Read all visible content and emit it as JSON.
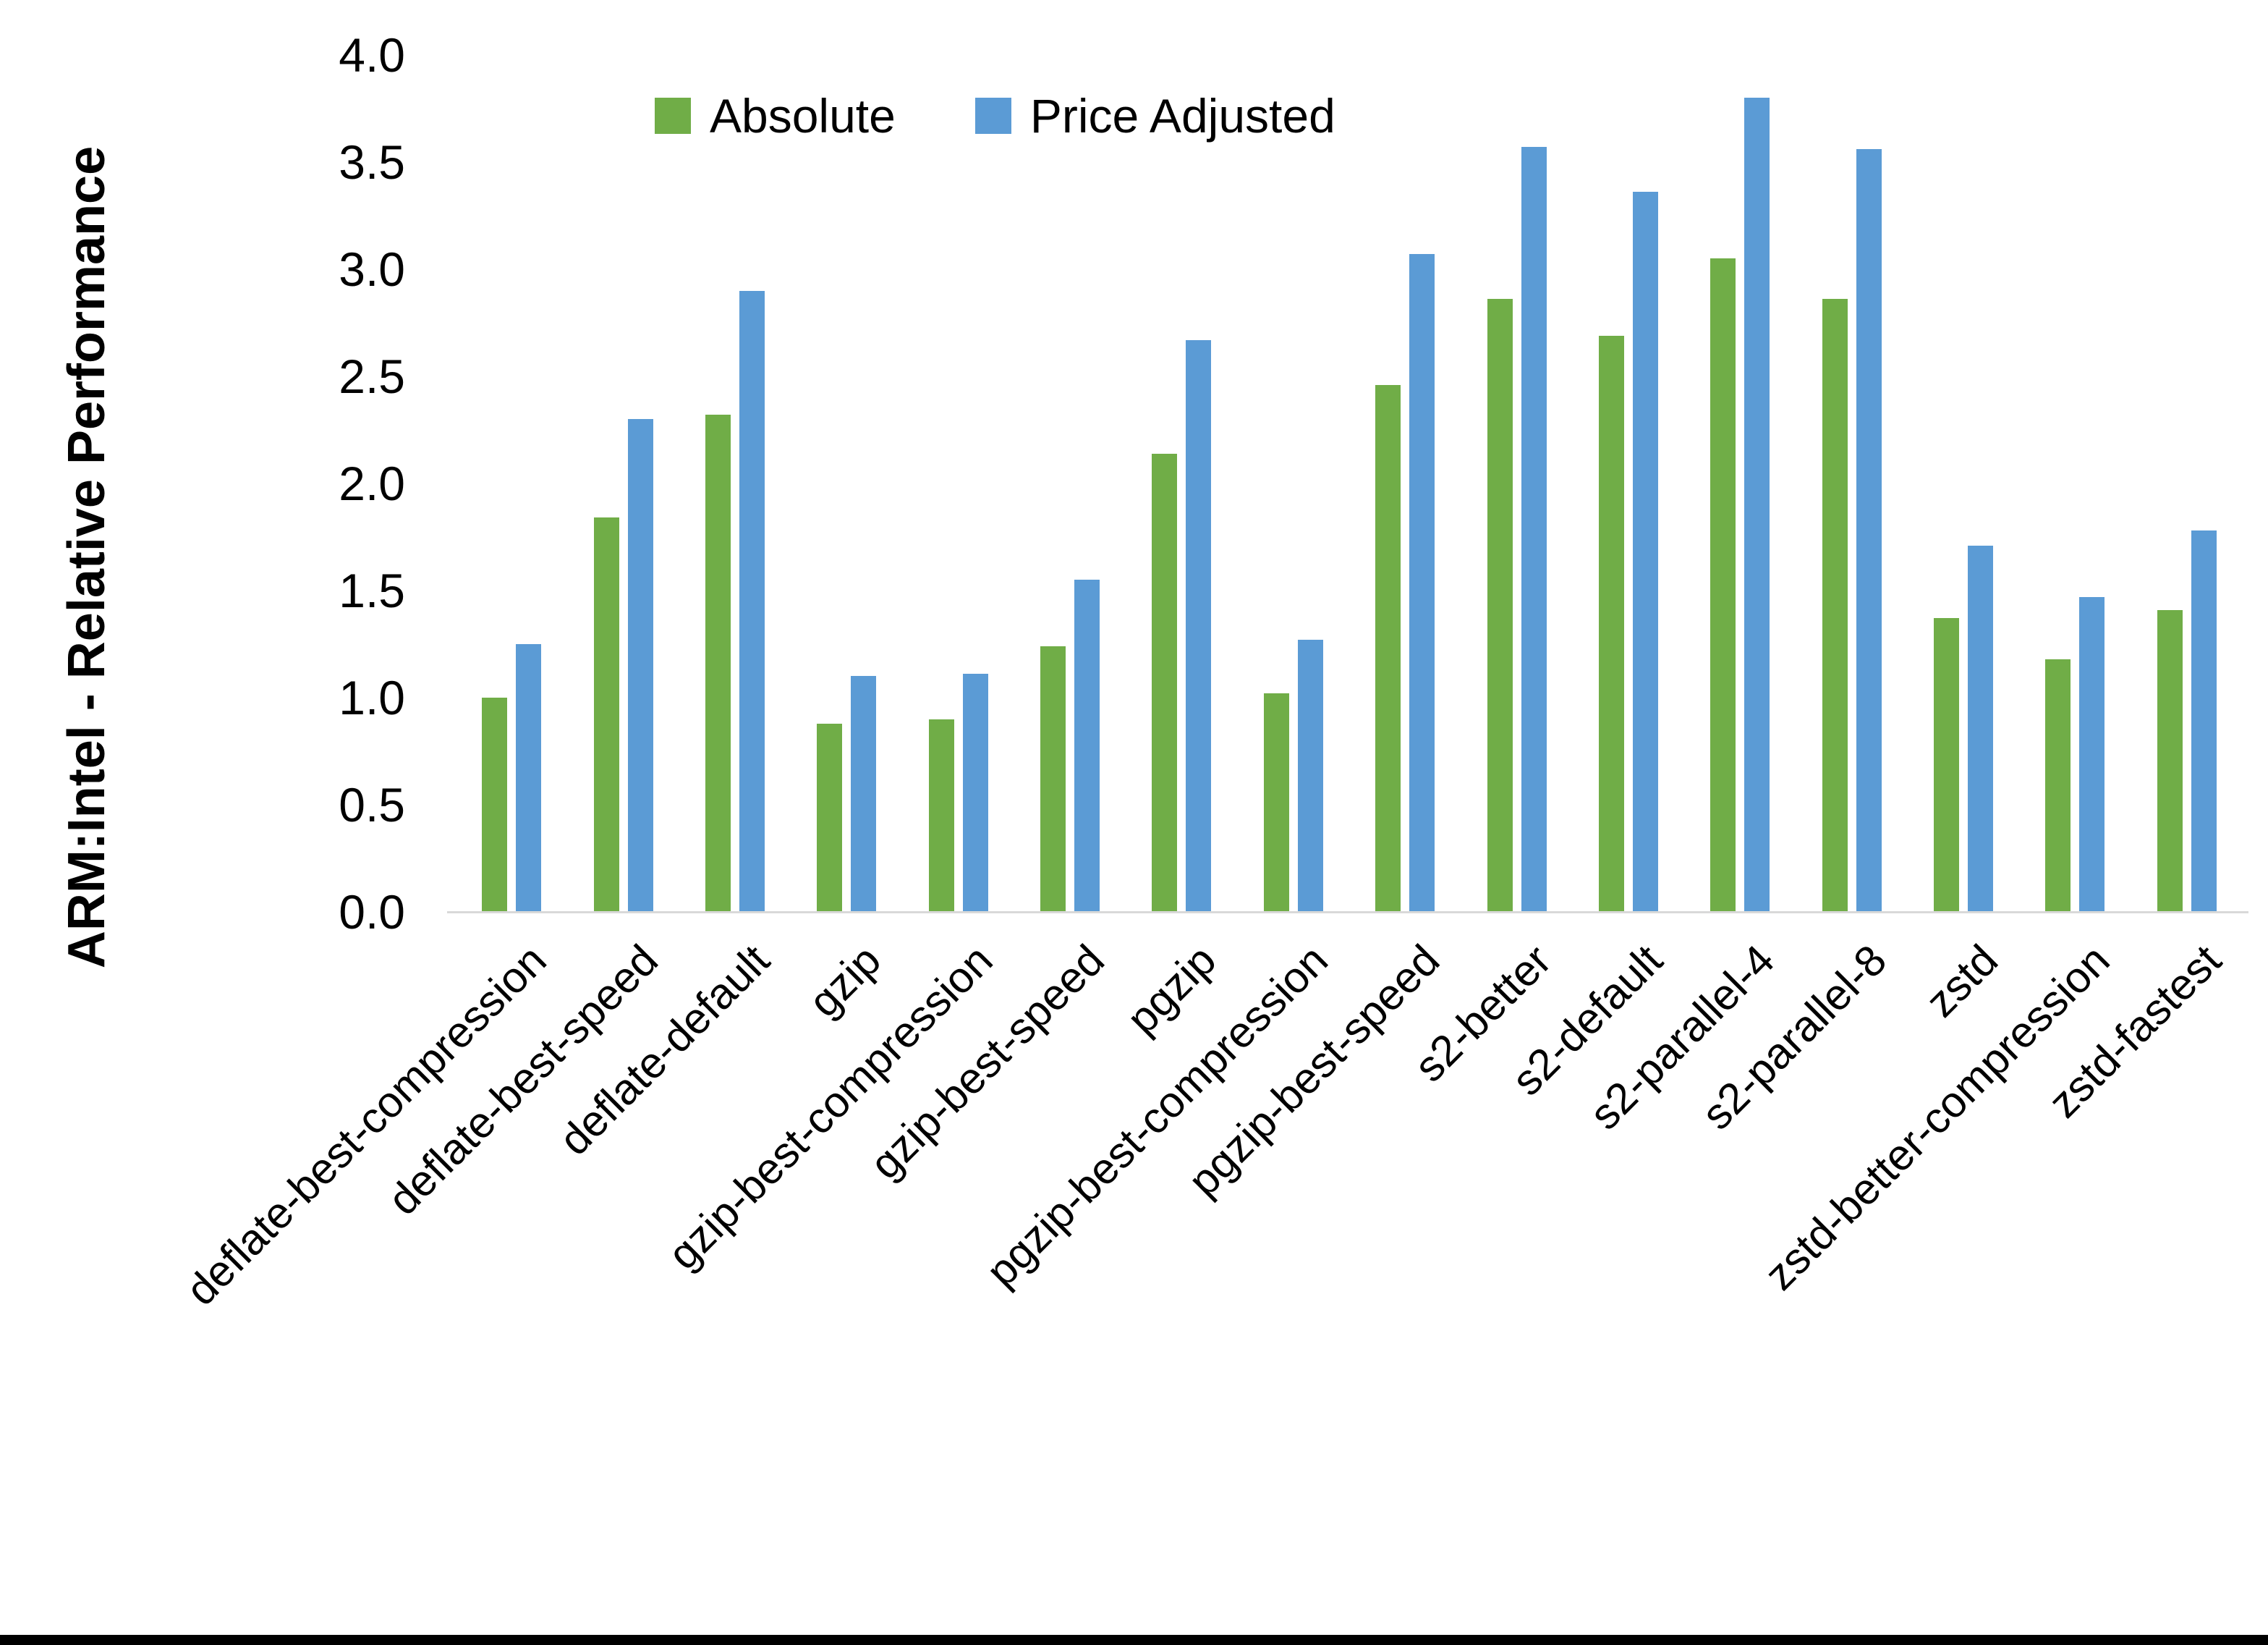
{
  "chart_data": {
    "type": "bar",
    "title": "",
    "xlabel": "",
    "ylabel": "ARM:Intel - Relative Performance",
    "ylim": [
      0,
      4
    ],
    "ytick_step": 0.5,
    "ytick_decimals": 1,
    "grid": false,
    "legend_position": "top-center",
    "x_label_rotation_deg": 45,
    "categories": [
      "deflate-best-compression",
      "deflate-best-speed",
      "deflate-default",
      "gzip",
      "gzip-best-compression",
      "gzip-best-speed",
      "pgzip",
      "pgzip-best-compression",
      "pgzip-best-speed",
      "s2-better",
      "s2-default",
      "s2-parallel-4",
      "s2-parallel-8",
      "zstd",
      "zstd-better-compression",
      "zstd-fastest"
    ],
    "series": [
      {
        "name": "Absolute",
        "color": "#70AD47",
        "values": [
          1.0,
          1.84,
          2.32,
          0.88,
          0.9,
          1.24,
          2.14,
          1.02,
          2.46,
          2.86,
          2.69,
          3.05,
          2.86,
          1.37,
          1.18,
          1.41
        ]
      },
      {
        "name": "Price Adjusted",
        "color": "#5B9BD5",
        "values": [
          1.25,
          2.3,
          2.9,
          1.1,
          1.11,
          1.55,
          2.67,
          1.27,
          3.07,
          3.57,
          3.36,
          3.8,
          3.56,
          1.71,
          1.47,
          1.78
        ]
      }
    ],
    "colors": {
      "axis_line": "#D9D9D9",
      "text": "#000000",
      "bottom_border": "#000000"
    }
  }
}
